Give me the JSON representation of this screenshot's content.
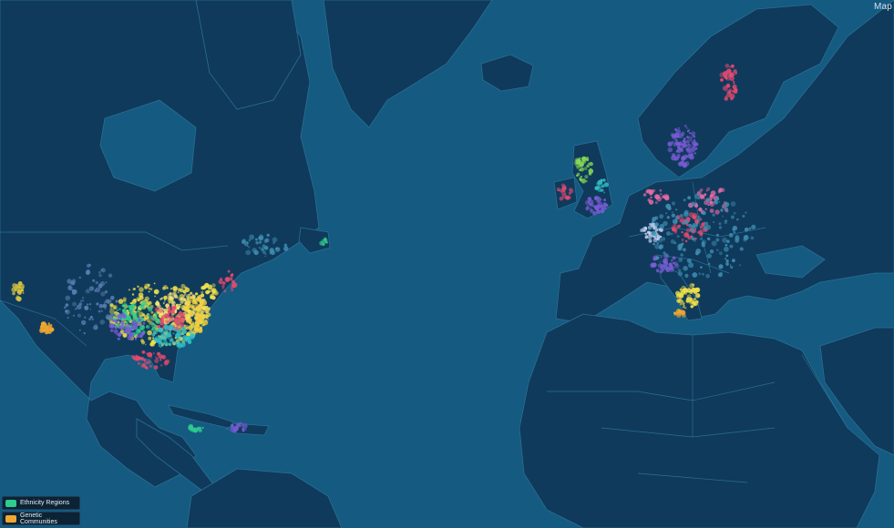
{
  "map": {
    "corner_label": "Map",
    "legend": [
      {
        "label": "Ethnicity Regions",
        "icon": "ethnicity-region-icon",
        "color": "#2ecc8f"
      },
      {
        "label": "Genetic Communities",
        "icon": "genetic-community-icon",
        "color": "#f0a830"
      }
    ],
    "colors": {
      "ocean": "#155a80",
      "land": "#0f3a5c",
      "borders": "#2b6f93"
    }
  }
}
